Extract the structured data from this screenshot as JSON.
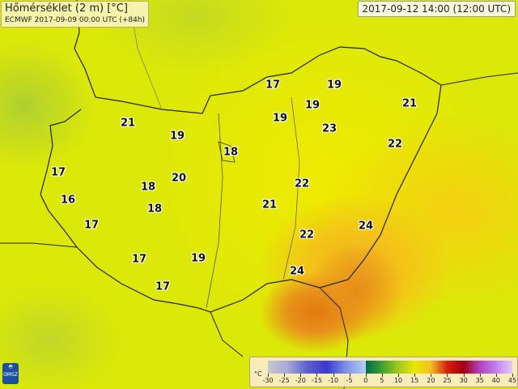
{
  "header": {
    "title": "Hőmérséklet (2 m) [°C]",
    "subtitle": "ECMWF 2017-09-09  00:00 UTC (+84h)",
    "valid_time": "2017-09-12 14:00 (12:00 UTC)"
  },
  "legend": {
    "unit": "°C",
    "ticks": [
      "-30",
      "-25",
      "-20",
      "-15",
      "-10",
      "-5",
      "0",
      "5",
      "10",
      "15",
      "20",
      "25",
      "30",
      "35",
      "40",
      "45"
    ],
    "colors": [
      "#c8c8d0",
      "#a8a8d8",
      "#6060d0",
      "#3a3ad0",
      "#8090e8",
      "#b0d0f8",
      "#006a50",
      "#40a030",
      "#a0c820",
      "#e8e800",
      "#f0c020",
      "#d82010",
      "#a00010",
      "#b040c0",
      "#c080f0",
      "#e8c8f8"
    ]
  },
  "logo": {
    "text": "OMSZ"
  },
  "temperatures": [
    {
      "value": "17"
    },
    {
      "value": "19"
    },
    {
      "value": "21"
    },
    {
      "value": "19"
    },
    {
      "value": "19"
    },
    {
      "value": "23"
    },
    {
      "value": "21"
    },
    {
      "value": "19"
    },
    {
      "value": "18"
    },
    {
      "value": "22"
    },
    {
      "value": "17"
    },
    {
      "value": "20"
    },
    {
      "value": "22"
    },
    {
      "value": "18"
    },
    {
      "value": "16"
    },
    {
      "value": "21"
    },
    {
      "value": "18"
    },
    {
      "value": "17"
    },
    {
      "value": "24"
    },
    {
      "value": "22"
    },
    {
      "value": "17"
    },
    {
      "value": "19"
    },
    {
      "value": "24"
    },
    {
      "value": "17"
    }
  ]
}
